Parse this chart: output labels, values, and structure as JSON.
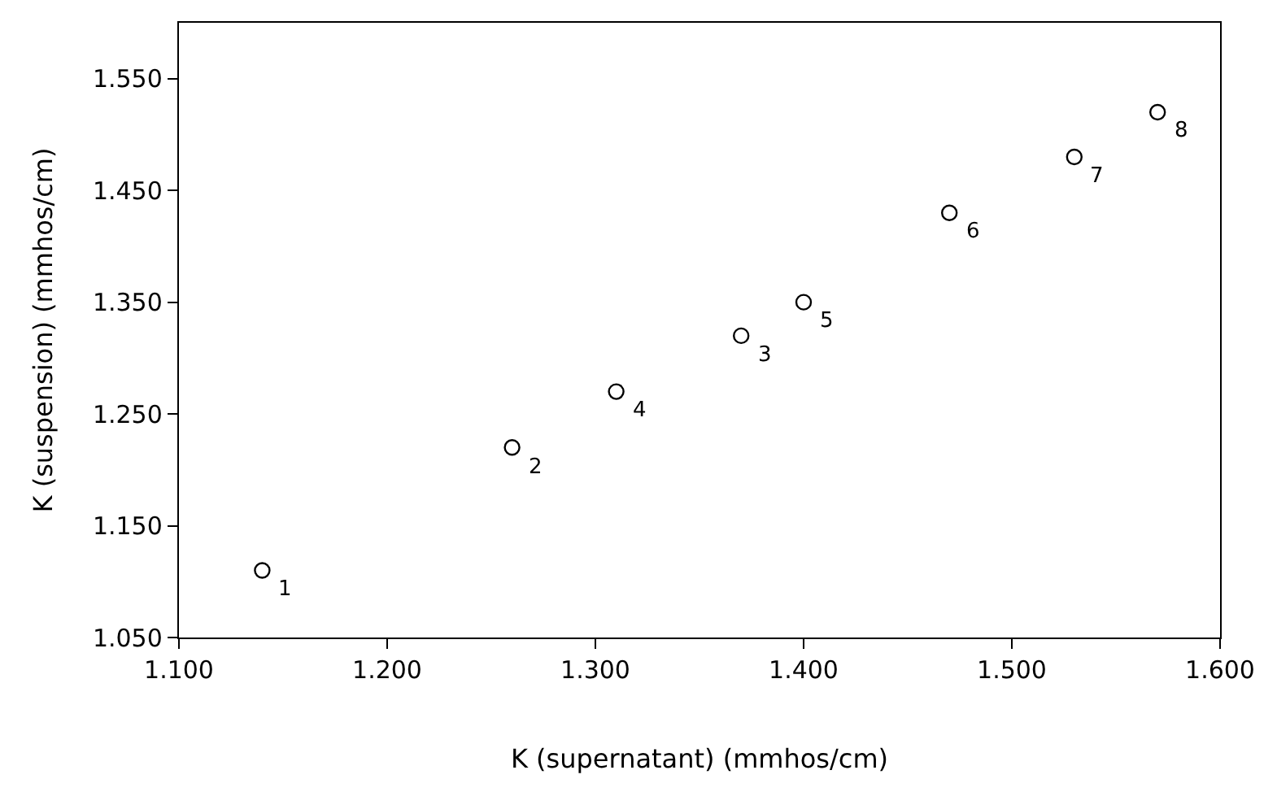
{
  "chart_data": {
    "type": "scatter",
    "xlabel": "K (supernatant) (mmhos/cm)",
    "ylabel": "K (suspension) (mmhos/cm)",
    "x": [
      1.14,
      1.26,
      1.37,
      1.31,
      1.4,
      1.47,
      1.53,
      1.57
    ],
    "series": [
      {
        "color": "#000000",
        "values": [
          1.11,
          1.22,
          1.32,
          1.27,
          1.35,
          1.43,
          1.48,
          1.52
        ]
      }
    ],
    "marker": "circle",
    "xlim": [
      1.1,
      1.6
    ],
    "ylim": [
      1.05,
      1.6
    ],
    "xticks": [
      {
        "value": 1.1,
        "label": "1.100"
      },
      {
        "value": 1.2,
        "label": "1.200"
      },
      {
        "value": 1.3,
        "label": "1.300"
      },
      {
        "value": 1.4,
        "label": "1.400"
      },
      {
        "value": 1.5,
        "label": "1.500"
      },
      {
        "value": 1.6,
        "label": "1.600"
      }
    ],
    "yticks": [
      {
        "value": 1.05,
        "label": "1.050"
      },
      {
        "value": 1.15,
        "label": "1.150"
      },
      {
        "value": 1.25,
        "label": "1.250"
      },
      {
        "value": 1.35,
        "label": "1.350"
      },
      {
        "value": 1.45,
        "label": "1.450"
      },
      {
        "value": 1.55,
        "label": "1.550"
      }
    ],
    "annotations": [
      {
        "text": "1",
        "x": 1.14,
        "y": 1.11
      },
      {
        "text": "2",
        "x": 1.26,
        "y": 1.22
      },
      {
        "text": "3",
        "x": 1.37,
        "y": 1.32
      },
      {
        "text": "4",
        "x": 1.31,
        "y": 1.27
      },
      {
        "text": "5",
        "x": 1.4,
        "y": 1.35
      },
      {
        "text": "6",
        "x": 1.47,
        "y": 1.43
      },
      {
        "text": "7",
        "x": 1.53,
        "y": 1.48
      },
      {
        "text": "8",
        "x": 1.57,
        "y": 1.52
      }
    ]
  }
}
